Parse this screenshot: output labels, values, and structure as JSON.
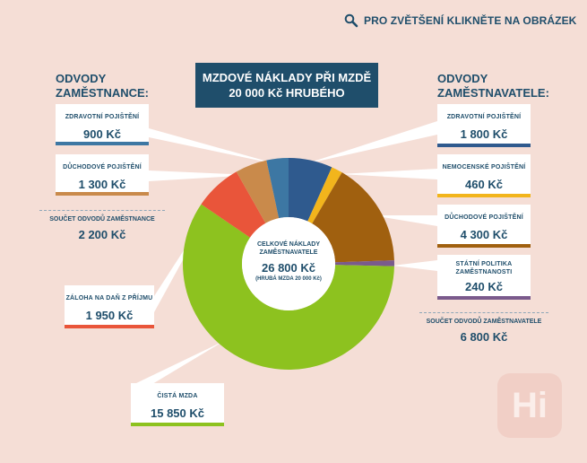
{
  "hint": {
    "text": "PRO ZVĚTŠENÍ KLIKNĚTE NA OBRÁZEK"
  },
  "title": {
    "line1": "MZDOVÉ NÁKLADY PŘI MZDĚ",
    "line2": "20 000 Kč HRUBÉHO"
  },
  "left_heading": {
    "line1": "ODVODY",
    "line2": "ZAMĚSTNANCE:"
  },
  "right_heading": {
    "line1": "ODVODY",
    "line2": "ZAMĚSTNAVATELE:"
  },
  "center": {
    "line1": "CELKOVÉ NÁKLADY",
    "line2": "ZAMĚSTNAVATELE",
    "value": "26 800 Kč",
    "note": "(HRUBÁ MZDA 20 000 Kč)"
  },
  "employee_cards": [
    {
      "label": "ZDRAVOTNÍ POJIŠTĚNÍ",
      "value": "900 Kč",
      "color": "#3d77a3"
    },
    {
      "label": "DŮCHODOVÉ POJIŠTĚNÍ",
      "value": "1 300 Kč",
      "color": "#c98a4b"
    }
  ],
  "employee_sum": {
    "label": "SOUČET ODVODŮ ZAMĚSTNANCE",
    "value": "2 200 Kč"
  },
  "tax_card": {
    "label": "ZÁLOHA NA DAŇ Z PŘÍJMU",
    "value": "1 950 Kč",
    "color": "#e9553a"
  },
  "net_card": {
    "label": "ČISTÁ MZDA",
    "value": "15 850 Kč",
    "color": "#8dc21f"
  },
  "employer_cards": [
    {
      "label": "ZDRAVOTNÍ POJIŠTĚNÍ",
      "value": "1 800 Kč",
      "color": "#2f5a8e"
    },
    {
      "label": "NEMOCENSKÉ POJIŠTĚNÍ",
      "value": "460 Kč",
      "color": "#f2b51c"
    },
    {
      "label": "DŮCHODOVÉ POJIŠTĚNÍ",
      "value": "4 300 Kč",
      "color": "#a0600f"
    },
    {
      "label": "STÁTNÍ POLITIKA ZAMĚSTNANOSTI",
      "value": "240 Kč",
      "color": "#7a5a8c"
    }
  ],
  "employer_sum": {
    "label": "SOUČET ODVODŮ ZAMĚSTNAVATELE",
    "value": "6 800 Kč"
  },
  "logo": {
    "text": "Hi"
  },
  "chart_data": {
    "type": "pie",
    "title": "MZDOVÉ NÁKLADY PŘI MZDĚ 20 000 Kč HRUBÉHO",
    "total": 26800,
    "slices": [
      {
        "name": "ZDRAVOTNÍ POJIŠTĚNÍ (zaměstnavatel)",
        "value": 1800,
        "color": "#2f5a8e"
      },
      {
        "name": "NEMOCENSKÉ POJIŠTĚNÍ",
        "value": 460,
        "color": "#f2b51c"
      },
      {
        "name": "DŮCHODOVÉ POJIŠTĚNÍ (zaměstnavatel)",
        "value": 4300,
        "color": "#a0600f"
      },
      {
        "name": "STÁTNÍ POLITIKA ZAMĚSTNANOSTI",
        "value": 240,
        "color": "#7a5a8c"
      },
      {
        "name": "ČISTÁ MZDA",
        "value": 15850,
        "color": "#8dc21f"
      },
      {
        "name": "ZÁLOHA NA DAŇ Z PŘÍJMU",
        "value": 1950,
        "color": "#e9553a"
      },
      {
        "name": "DŮCHODOVÉ POJIŠTĚNÍ (zaměstnanec)",
        "value": 1300,
        "color": "#c98a4b"
      },
      {
        "name": "ZDRAVOTNÍ POJIŠTĚNÍ (zaměstnanec)",
        "value": 900,
        "color": "#3d77a3"
      }
    ]
  }
}
